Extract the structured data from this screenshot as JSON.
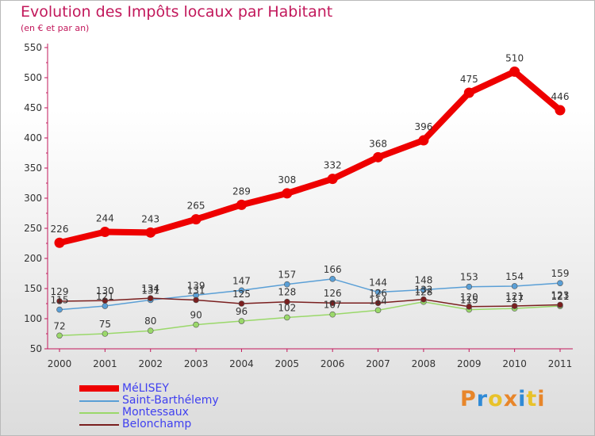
{
  "header": {
    "title": "Evolution des Impôts locaux par Habitant",
    "subtitle": "(en € et par an)"
  },
  "logo": {
    "text": "Proxiti",
    "colors": [
      "#e8862a",
      "#2f8ad6",
      "#e8c22a",
      "#e8862a",
      "#2f8ad6",
      "#e8c22a",
      "#e8862a"
    ]
  },
  "chart_data": {
    "type": "line",
    "x": [
      "2000",
      "2001",
      "2002",
      "2003",
      "2004",
      "2005",
      "2006",
      "2007",
      "2008",
      "2009",
      "2010",
      "2011"
    ],
    "ylim": [
      50,
      550
    ],
    "yticks": [
      50,
      100,
      150,
      200,
      250,
      300,
      350,
      400,
      450,
      500,
      550
    ],
    "grid": false,
    "legend_position": "bottom-left",
    "series": [
      {
        "name": "MéLISEY",
        "color": "#ee0000",
        "emphasis": true,
        "values": [
          226,
          244,
          243,
          265,
          289,
          308,
          332,
          368,
          396,
          475,
          510,
          446
        ]
      },
      {
        "name": "Saint-Barthélemy",
        "color": "#5a9fd6",
        "emphasis": false,
        "values": [
          115,
          121,
          131,
          139,
          147,
          157,
          166,
          144,
          148,
          153,
          154,
          159
        ]
      },
      {
        "name": "Montessaux",
        "color": "#9ad86a",
        "emphasis": false,
        "values": [
          72,
          75,
          80,
          90,
          96,
          102,
          107,
          114,
          128,
          115,
          117,
          121
        ]
      },
      {
        "name": "Belonchamp",
        "color": "#7a1f1f",
        "emphasis": false,
        "values": [
          129,
          130,
          134,
          131,
          125,
          128,
          126,
          126,
          132,
          120,
          121,
          123
        ]
      }
    ]
  }
}
